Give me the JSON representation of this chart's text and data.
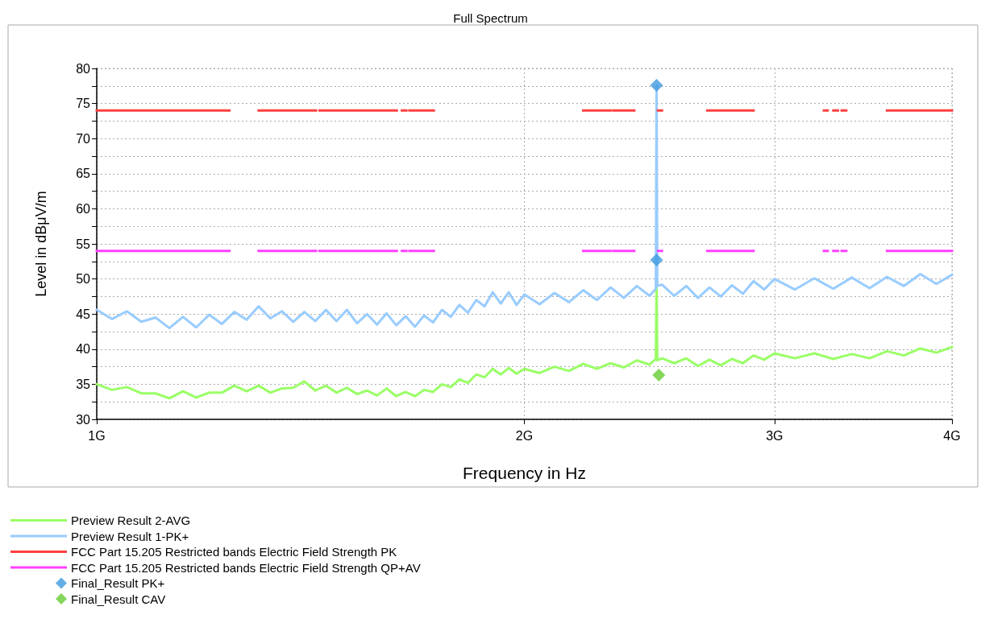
{
  "chart_data": {
    "type": "line",
    "title": "Full Spectrum",
    "xlabel": "Frequency in Hz",
    "ylabel": "Level in dBμV/m",
    "log": "x",
    "grid": true,
    "legend": "bottom left",
    "marker": "none",
    "line_style": "solid",
    "xlim": [
      1,
      4
    ],
    "xticks": [
      {
        "value": 1,
        "label": "1G"
      },
      {
        "value": 2,
        "label": "2G"
      },
      {
        "value": 3,
        "label": "3G"
      },
      {
        "value": 4,
        "label": "4G"
      }
    ],
    "ylim": [
      30,
      80
    ],
    "yticks": [
      30,
      {
        "value": 32.5,
        "label": null
      },
      35,
      {
        "value": 37.5,
        "label": null
      },
      40,
      {
        "value": 42.5,
        "label": null
      },
      45,
      {
        "value": 47.5,
        "label": null
      },
      50,
      {
        "value": 52.5,
        "label": null
      },
      55,
      {
        "value": 57.5,
        "label": null
      },
      60,
      {
        "value": 62.5,
        "label": null
      },
      65,
      {
        "value": 67.5,
        "label": null
      },
      70,
      {
        "value": 72.5,
        "label": null
      },
      75,
      {
        "value": 77.5,
        "label": null
      },
      80
    ],
    "x": [
      1.0,
      1.025,
      1.05,
      1.075,
      1.1,
      1.125,
      1.15,
      1.175,
      1.2,
      1.225,
      1.25,
      1.275,
      1.3,
      1.325,
      1.35,
      1.375,
      1.4,
      1.425,
      1.45,
      1.475,
      1.5,
      1.525,
      1.55,
      1.575,
      1.6,
      1.625,
      1.65,
      1.675,
      1.7,
      1.725,
      1.75,
      1.775,
      1.8,
      1.825,
      1.85,
      1.875,
      1.9,
      1.925,
      1.95,
      1.975,
      2.0,
      2.05,
      2.1,
      2.15,
      2.2,
      2.25,
      2.3,
      2.35,
      2.4,
      2.45,
      2.475,
      2.478,
      2.481,
      2.5,
      2.55,
      2.6,
      2.65,
      2.7,
      2.75,
      2.8,
      2.85,
      2.9,
      2.95,
      3.0,
      3.1,
      3.2,
      3.3,
      3.4,
      3.5,
      3.6,
      3.7,
      3.8,
      3.9,
      4.0
    ],
    "series": [
      {
        "name": "Preview Result 2-AVG",
        "color": "#99ff66",
        "values": [
          35.0,
          34.2,
          34.6,
          33.7,
          33.7,
          33.0,
          34.0,
          33.1,
          33.8,
          33.8,
          34.8,
          34.0,
          34.8,
          33.8,
          34.4,
          34.5,
          35.4,
          34.1,
          34.8,
          33.8,
          34.5,
          33.6,
          34.1,
          33.4,
          34.4,
          33.3,
          33.9,
          33.3,
          34.2,
          33.9,
          35.0,
          34.6,
          35.7,
          35.2,
          36.4,
          36.0,
          37.2,
          36.4,
          37.3,
          36.5,
          37.2,
          36.6,
          37.5,
          36.9,
          37.9,
          37.2,
          38.0,
          37.4,
          38.4,
          37.8,
          38.6,
          49.1,
          38.4,
          38.7,
          38.0,
          38.7,
          37.6,
          38.5,
          37.7,
          38.6,
          38.0,
          39.1,
          38.5,
          39.4,
          38.7,
          39.4,
          38.6,
          39.3,
          38.7,
          39.7,
          39.1,
          40.1,
          39.5,
          40.3
        ]
      },
      {
        "name": "Preview Result 1-PK+",
        "color": "#99ccff",
        "values": [
          45.6,
          44.3,
          45.4,
          43.9,
          44.5,
          43.0,
          44.6,
          43.1,
          44.9,
          43.6,
          45.3,
          44.2,
          46.1,
          44.4,
          45.4,
          43.9,
          45.3,
          44.0,
          45.6,
          44.0,
          45.6,
          43.7,
          45.0,
          43.5,
          45.1,
          43.4,
          44.7,
          43.2,
          44.8,
          43.8,
          45.6,
          44.6,
          46.3,
          45.2,
          47.0,
          46.1,
          48.1,
          46.5,
          48.1,
          46.3,
          47.8,
          46.4,
          48.0,
          46.7,
          48.4,
          47.0,
          48.8,
          47.3,
          49.0,
          47.6,
          48.6,
          77.6,
          49.0,
          49.2,
          47.6,
          49.0,
          47.3,
          48.8,
          47.5,
          49.1,
          47.9,
          49.7,
          48.5,
          50.0,
          48.5,
          50.1,
          48.6,
          50.2,
          48.7,
          50.3,
          49.0,
          50.7,
          49.3,
          50.6
        ]
      },
      {
        "name": "FCC Part 15.205 Restricted bands Electric Field Strength PK",
        "color": "#ff4040",
        "x": [
          1,
          1.24,
          1.27,
          1.3,
          1.427,
          1.431,
          1.435,
          1.6265,
          1.633,
          1.64,
          1.652,
          1.656,
          1.66,
          1.71,
          1.712,
          1.714,
          1.727,
          1.96,
          2.2,
          2.3,
          2.305,
          2.31,
          2.39,
          2.44,
          2.4835,
          2.5,
          2.6,
          2.69,
          2.9,
          3.08,
          3.25,
          3.27,
          3.285,
          3.3,
          3.325,
          3.335,
          3.345,
          3.37,
          3.48,
          3.6,
          4
        ],
        "values": [
          74,
          74,
          null,
          74,
          74,
          null,
          74,
          74,
          null,
          74,
          74,
          null,
          74,
          74,
          null,
          74,
          74,
          null,
          74,
          74,
          null,
          74,
          74,
          null,
          74,
          74,
          null,
          74,
          74,
          null,
          74,
          74,
          null,
          74,
          74,
          null,
          74,
          74,
          null,
          74,
          74
        ]
      },
      {
        "name": "FCC Part 15.205 Restricted bands Electric Field Strength QP+AV",
        "color": "#ff40ff",
        "x": [
          1,
          1.24,
          1.27,
          1.3,
          1.427,
          1.431,
          1.435,
          1.6265,
          1.633,
          1.64,
          1.652,
          1.656,
          1.66,
          1.71,
          1.712,
          1.714,
          1.727,
          1.96,
          2.2,
          2.3,
          2.305,
          2.31,
          2.39,
          2.44,
          2.4835,
          2.5,
          2.6,
          2.69,
          2.9,
          3.08,
          3.25,
          3.27,
          3.285,
          3.3,
          3.325,
          3.335,
          3.345,
          3.37,
          3.48,
          3.6,
          4
        ],
        "values": [
          54,
          54,
          null,
          54,
          54,
          null,
          54,
          54,
          null,
          54,
          54,
          null,
          54,
          54,
          null,
          54,
          54,
          null,
          54,
          54,
          null,
          54,
          54,
          null,
          54,
          54,
          null,
          54,
          54,
          null,
          54,
          54,
          null,
          54,
          54,
          null,
          54,
          54,
          null,
          54,
          54
        ]
      },
      {
        "name": "Final_Result PK+",
        "type": "scatter",
        "marker": "diamond",
        "color": "#3f9ade",
        "x": [
          2.478,
          2.478
        ],
        "values": [
          77.6,
          52.7
        ]
      },
      {
        "name": "Final_Result CAV",
        "type": "scatter",
        "marker": "diamond",
        "color": "#66cc33",
        "x": [
          2.487
        ],
        "values": [
          36.3
        ]
      }
    ]
  }
}
